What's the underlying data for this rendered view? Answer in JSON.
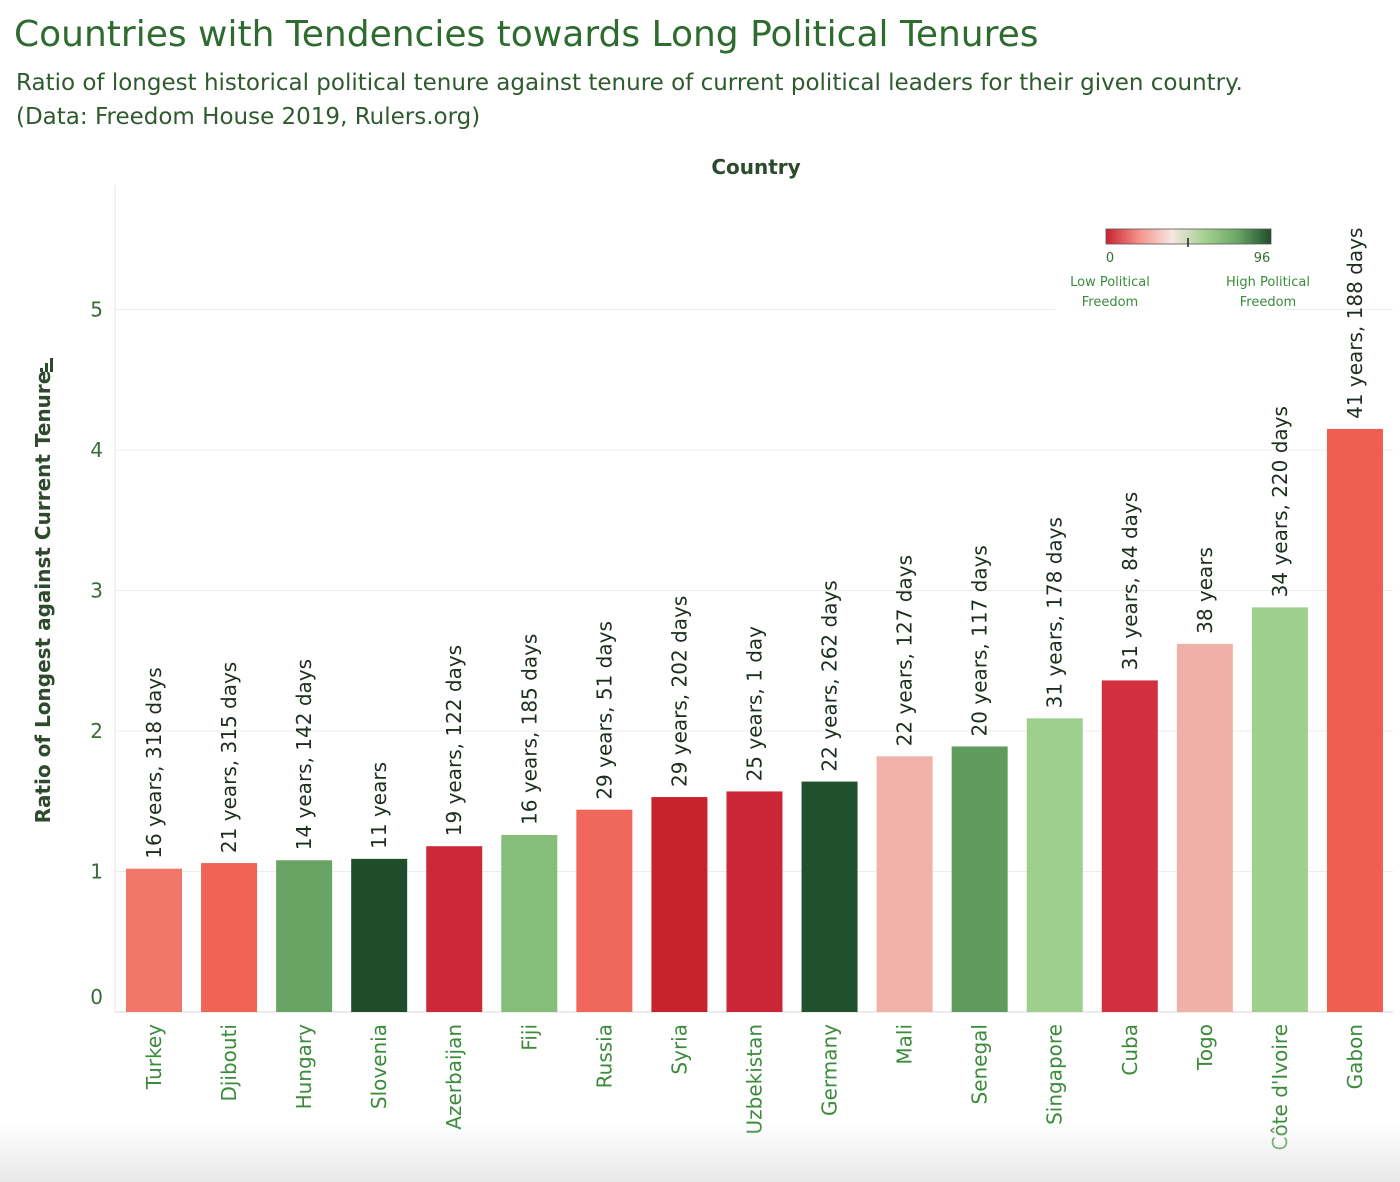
{
  "header": {
    "title": "Countries with Tendencies towards Long Political Tenures",
    "subtitle_line1": "Ratio of longest historical political tenure against tenure of current political leaders for their given country.",
    "subtitle_line2": "(Data: Freedom House 2019, Rulers.org)"
  },
  "legend": {
    "min_label": "0",
    "max_label": "96",
    "low_label_line1": "Low Political",
    "low_label_line2": "Freedom",
    "high_label_line1": "High Political",
    "high_label_line2": "Freedom",
    "color_stops": [
      "#c9222f",
      "#f5928a",
      "#f6e6e2",
      "#a5d18f",
      "#6aa566",
      "#1f4d2c"
    ]
  },
  "chart_data": {
    "type": "bar",
    "title": "Countries with Tendencies towards Long Political Tenures",
    "xlabel": "Country",
    "ylabel": "Ratio of Longest against Current Tenure",
    "ylim": [
      0,
      5.7
    ],
    "yticks": [
      0,
      1,
      2,
      3,
      4,
      5
    ],
    "grid": true,
    "legend_position": "top-right",
    "categories": [
      "Turkey",
      "Djibouti",
      "Hungary",
      "Slovenia",
      "Azerbaijan",
      "Fiji",
      "Russia",
      "Syria",
      "Uzbekistan",
      "Germany",
      "Mali",
      "Senegal",
      "Singapore",
      "Cuba",
      "Togo",
      "Côte d'Ivoire",
      "Gabon"
    ],
    "values": [
      1.02,
      1.06,
      1.08,
      1.09,
      1.18,
      1.26,
      1.44,
      1.53,
      1.57,
      1.64,
      1.82,
      1.89,
      2.09,
      2.36,
      2.62,
      2.88,
      4.15
    ],
    "labels": [
      "16 years, 318 days",
      "21 years, 315 days",
      "14 years, 142 days",
      "11 years",
      "19 years, 122 days",
      "16 years, 185 days",
      "29 years, 51 days",
      "29 years, 202 days",
      "25 years, 1 day",
      "22 years, 262 days",
      "22 years, 127 days",
      "20 years, 117 days",
      "31 years, 178 days",
      "31 years, 84 days",
      "38 years",
      "34 years, 220 days",
      "41 years, 188 days"
    ],
    "colors": [
      "#f0786b",
      "#ef6455",
      "#68a463",
      "#1f4d2c",
      "#cc2838",
      "#84be79",
      "#f0675b",
      "#c9222f",
      "#cb2637",
      "#20502e",
      "#f1b1a8",
      "#5e9b5c",
      "#9fcf8d",
      "#d2303f",
      "#efb0a7",
      "#9fcf8d",
      "#ef5f51"
    ]
  }
}
